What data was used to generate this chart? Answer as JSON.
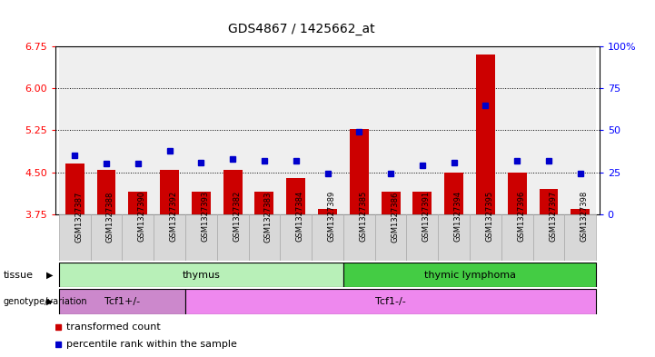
{
  "title": "GDS4867 / 1425662_at",
  "samples": [
    "GSM1327387",
    "GSM1327388",
    "GSM1327390",
    "GSM1327392",
    "GSM1327393",
    "GSM1327382",
    "GSM1327383",
    "GSM1327384",
    "GSM1327389",
    "GSM1327385",
    "GSM1327386",
    "GSM1327391",
    "GSM1327394",
    "GSM1327395",
    "GSM1327396",
    "GSM1327397",
    "GSM1327398"
  ],
  "red_values": [
    4.65,
    4.55,
    4.15,
    4.55,
    4.15,
    4.55,
    4.15,
    4.4,
    3.85,
    5.28,
    4.15,
    4.15,
    4.5,
    6.6,
    4.5,
    4.2,
    3.85
  ],
  "blue_values": [
    35,
    30,
    30,
    38,
    31,
    33,
    32,
    32,
    24,
    49,
    24,
    29,
    31,
    65,
    32,
    32,
    24
  ],
  "ylim_left": [
    3.75,
    6.75
  ],
  "ylim_right": [
    0,
    100
  ],
  "yticks_left": [
    3.75,
    4.5,
    5.25,
    6.0,
    6.75
  ],
  "yticks_right": [
    0,
    25,
    50,
    75,
    100
  ],
  "hlines": [
    4.5,
    5.25,
    6.0
  ],
  "tissue_groups": [
    {
      "label": "thymus",
      "start": 0,
      "end": 9,
      "color": "#b8f0b8"
    },
    {
      "label": "thymic lymphoma",
      "start": 9,
      "end": 17,
      "color": "#44cc44"
    }
  ],
  "genotype_groups": [
    {
      "label": "Tcf1+/-",
      "start": 0,
      "end": 4,
      "color": "#cc88cc"
    },
    {
      "label": "Tcf1-/-",
      "start": 4,
      "end": 17,
      "color": "#ee88ee"
    }
  ],
  "legend_items": [
    {
      "label": "transformed count",
      "color": "#cc0000"
    },
    {
      "label": "percentile rank within the sample",
      "color": "#0000cc"
    }
  ],
  "bar_color": "#cc0000",
  "dot_color": "#0000cc",
  "title_fontsize": 10,
  "bar_width": 0.6,
  "tick_label_bg": "#d8d8d8"
}
